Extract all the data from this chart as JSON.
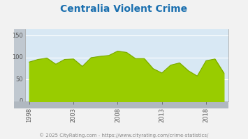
{
  "title": "Centralia Violent Crime",
  "title_color": "#1a6faf",
  "title_fontsize": 10,
  "years": [
    1998,
    1999,
    2000,
    2001,
    2002,
    2003,
    2004,
    2005,
    2006,
    2007,
    2008,
    2009,
    2010,
    2011,
    2012,
    2013,
    2014,
    2015,
    2016,
    2017,
    2018,
    2019,
    2020
  ],
  "values": [
    90,
    96,
    99,
    85,
    96,
    97,
    80,
    100,
    103,
    105,
    115,
    112,
    98,
    98,
    75,
    65,
    83,
    88,
    70,
    58,
    93,
    97,
    65
  ],
  "fill_color": "#99cc00",
  "line_color": "#7aaa00",
  "bg_color": "#d8e8f4",
  "fig_bg": "#f2f2f2",
  "yticks": [
    0,
    50,
    100,
    150
  ],
  "xticks": [
    1998,
    2003,
    2008,
    2013,
    2018
  ],
  "ylim": [
    0,
    165
  ],
  "xlim_min": 1997.5,
  "xlim_max": 2020.5,
  "footer": "© 2025 CityRating.com - https://www.cityrating.com/crime-statistics/",
  "footer_color": "#888888",
  "footer_fontsize": 5.0,
  "grid_color": "#ffffff",
  "wall_color": "#c0c8d0",
  "ledge_color": "#b0b8c0",
  "tick_color": "#555555",
  "tick_fontsize": 6
}
